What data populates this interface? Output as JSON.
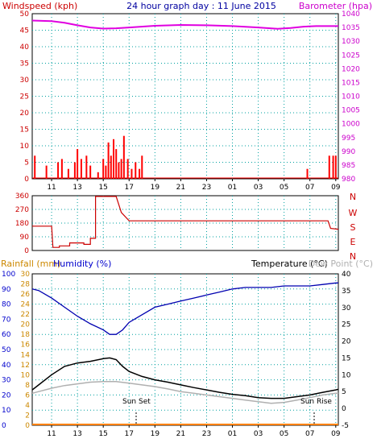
{
  "header": {
    "title": "24 hour graph day : 11 June 2015",
    "left_label": "Windspeed (kph)",
    "right_label": "Barometer (hpa)"
  },
  "wind_panel": {
    "yticks_left": [
      "0",
      "5",
      "10",
      "15",
      "20",
      "25",
      "30",
      "35",
      "40",
      "45",
      "50"
    ],
    "yticks_right": [
      "980",
      "985",
      "990",
      "995",
      "1000",
      "1005",
      "1010",
      "1015",
      "1020",
      "1025",
      "1030",
      "1035",
      "1040"
    ]
  },
  "dir_panel": {
    "yticks": [
      "0",
      "90",
      "180",
      "270",
      "360"
    ],
    "compass": [
      "N",
      "W",
      "S",
      "E",
      "N"
    ]
  },
  "temp_panel": {
    "rain_label": "Rainfall (mm)",
    "humidity_label": "Humidity (%)",
    "temp_label": "Temperature (°C)",
    "dew_label": "Dew Point (°C)",
    "sunset_label": "Sun Set",
    "sunrise_label": "Sun Rise",
    "yticks_hum": [
      "0",
      "10",
      "20",
      "30",
      "40",
      "50",
      "60",
      "70",
      "80",
      "90",
      "100"
    ],
    "yticks_rain": [
      "0",
      "2",
      "4",
      "6",
      "8",
      "10",
      "12",
      "14",
      "16",
      "18",
      "20",
      "22",
      "24",
      "26",
      "28",
      "30"
    ],
    "yticks_temp": [
      "-5",
      "0",
      "5",
      "10",
      "15",
      "20",
      "25",
      "30",
      "35",
      "40"
    ]
  },
  "x_hours": [
    "11",
    "13",
    "15",
    "17",
    "19",
    "21",
    "23",
    "01",
    "03",
    "05",
    "07",
    "09"
  ],
  "colors": {
    "windspeed": "#ff0000",
    "gust": "#cc0000",
    "barometer": "#e000e0",
    "direction": "#cc0000",
    "humidity": "#0000b0",
    "temperature": "#000000",
    "dewpoint": "#b0b0b0",
    "rain": "#ff8000",
    "title": "#0000a0",
    "grid": "#00a0a0",
    "axis_label_red": "#cc0000",
    "axis_label_mag": "#cc00cc",
    "axis_label_blue": "#0000cc",
    "axis_label_rain": "#cc8800"
  },
  "chart_data": [
    {
      "type": "line",
      "name": "barometer",
      "x_range": [
        9.5,
        33.2
      ],
      "ylim": [
        980,
        1040
      ],
      "x": [
        9.5,
        11.0,
        12.0,
        13.0,
        14.0,
        15.0,
        16.0,
        17.0,
        19.0,
        21.0,
        23.0,
        25.0,
        27.0,
        28.5,
        29.5,
        30.5,
        31.5,
        33.2
      ],
      "y": [
        1037.5,
        1037.3,
        1036.7,
        1035.8,
        1035.0,
        1034.6,
        1034.7,
        1035.0,
        1035.6,
        1035.9,
        1035.8,
        1035.5,
        1035.0,
        1034.5,
        1034.8,
        1035.3,
        1035.5,
        1035.5
      ]
    },
    {
      "type": "bar",
      "name": "windspeed",
      "x_range": [
        9.5,
        33.2
      ],
      "ylim": [
        0,
        50
      ],
      "x": [
        9.7,
        10.6,
        11.5,
        11.8,
        12.3,
        12.8,
        13.0,
        13.3,
        13.7,
        14.0,
        14.6,
        15.0,
        15.2,
        15.4,
        15.6,
        15.8,
        16.0,
        16.2,
        16.4,
        16.6,
        16.9,
        17.2,
        17.5,
        17.8,
        18.0,
        30.8,
        32.5,
        32.8,
        33.0
      ],
      "values": [
        7,
        4,
        5,
        6,
        3,
        5,
        9,
        6,
        7,
        4,
        2,
        6,
        4,
        11,
        7,
        12,
        9,
        5,
        6,
        13,
        6,
        3,
        5,
        3,
        7,
        3,
        7,
        7,
        7
      ]
    },
    {
      "type": "line",
      "name": "wind_direction",
      "x_range": [
        9.5,
        33.2
      ],
      "ylim": [
        0,
        360
      ],
      "x": [
        9.5,
        11.0,
        11.1,
        11.6,
        11.6,
        12.4,
        12.4,
        13.5,
        13.5,
        14.0,
        14.0,
        14.4,
        14.4,
        16.0,
        16.4,
        17.0,
        19.0,
        21.0,
        23.0,
        25.0,
        27.0,
        29.0,
        31.5,
        32.4,
        32.6,
        33.2
      ],
      "y": [
        160,
        160,
        20,
        20,
        30,
        30,
        50,
        50,
        40,
        40,
        80,
        80,
        355,
        355,
        250,
        195,
        195,
        195,
        195,
        195,
        195,
        195,
        195,
        195,
        145,
        140
      ]
    },
    {
      "type": "line",
      "name": "humidity",
      "x_range": [
        9.5,
        33.2
      ],
      "ylim": [
        0,
        100
      ],
      "x": [
        9.5,
        10.0,
        11.0,
        12.0,
        13.0,
        14.0,
        15.0,
        15.5,
        16.0,
        16.5,
        17.0,
        18.0,
        19.0,
        20.0,
        21.0,
        22.0,
        23.0,
        24.0,
        25.0,
        26.0,
        27.0,
        28.0,
        29.0,
        30.0,
        31.0,
        32.0,
        33.0,
        33.2
      ],
      "y": [
        90,
        89,
        84,
        78,
        72,
        67,
        63,
        60,
        60,
        63,
        68,
        73,
        78,
        80,
        82,
        84,
        86,
        88,
        90,
        91,
        91,
        91,
        92,
        92,
        92,
        93,
        94,
        94
      ]
    },
    {
      "type": "line",
      "name": "temperature",
      "x_range": [
        9.5,
        33.2
      ],
      "ylim": [
        -5,
        40
      ],
      "x": [
        9.5,
        10.0,
        11.0,
        12.0,
        13.0,
        14.0,
        15.0,
        15.5,
        16.0,
        16.5,
        17.0,
        18.0,
        19.0,
        20.0,
        21.0,
        22.0,
        23.0,
        24.0,
        25.0,
        26.0,
        27.0,
        28.0,
        29.0,
        30.0,
        31.0,
        32.0,
        33.0,
        33.2
      ],
      "y": [
        5.5,
        7.0,
        10.0,
        12.5,
        13.5,
        14.0,
        14.8,
        15.0,
        14.5,
        12.5,
        11.0,
        9.5,
        8.5,
        7.8,
        7.0,
        6.2,
        5.5,
        4.8,
        4.2,
        3.8,
        3.2,
        3.0,
        3.0,
        3.5,
        4.0,
        4.8,
        5.5,
        5.7
      ]
    },
    {
      "type": "line",
      "name": "dew_point",
      "x_range": [
        9.5,
        33.2
      ],
      "ylim": [
        -5,
        40
      ],
      "x": [
        9.5,
        10.0,
        11.0,
        12.0,
        13.0,
        14.0,
        15.0,
        16.0,
        17.0,
        18.0,
        19.0,
        20.0,
        21.0,
        22.0,
        23.0,
        24.0,
        25.0,
        26.0,
        27.0,
        28.0,
        29.0,
        30.0,
        31.0,
        32.0,
        33.0,
        33.2
      ],
      "y": [
        4.5,
        5.0,
        6.0,
        6.8,
        7.3,
        7.8,
        8.0,
        8.0,
        7.5,
        7.0,
        6.5,
        5.8,
        5.0,
        4.5,
        4.0,
        3.5,
        3.0,
        2.5,
        2.0,
        1.5,
        1.8,
        2.5,
        3.2,
        4.0,
        4.5,
        4.5
      ]
    },
    {
      "type": "line",
      "name": "rainfall",
      "x_range": [
        9.5,
        33.2
      ],
      "ylim": [
        0,
        30
      ],
      "x": [
        9.5,
        33.2
      ],
      "y": [
        0,
        0
      ]
    }
  ]
}
